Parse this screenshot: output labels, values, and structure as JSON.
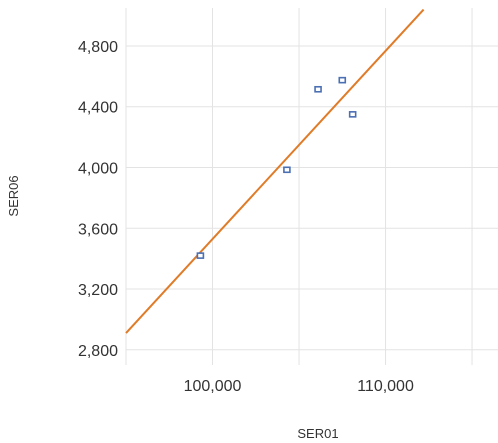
{
  "chart_data": {
    "type": "scatter",
    "xlabel": "SER01",
    "ylabel": "SER06",
    "xlim": [
      95000,
      116500
    ],
    "ylim": [
      2700,
      5050
    ],
    "x_ticks": [
      100000,
      110000
    ],
    "x_tick_labels": [
      "100,000",
      "110,000"
    ],
    "x_grid_values": [
      95000,
      100000,
      105000,
      110000,
      115000
    ],
    "y_ticks": [
      2800,
      3200,
      3600,
      4000,
      4400,
      4800
    ],
    "y_tick_labels": [
      "2,800",
      "3,200",
      "3,600",
      "4,000",
      "4,400",
      "4,800"
    ],
    "grid": true,
    "series": [
      {
        "type": "scatter",
        "marker_color": "#4a6fb3",
        "points": [
          {
            "x": 99300,
            "y": 3420
          },
          {
            "x": 104300,
            "y": 3985
          },
          {
            "x": 106100,
            "y": 4515
          },
          {
            "x": 107500,
            "y": 4575
          },
          {
            "x": 108100,
            "y": 4350
          }
        ]
      },
      {
        "type": "line",
        "color": "#e07b28",
        "points": [
          {
            "x": 95000,
            "y": 2910
          },
          {
            "x": 112200,
            "y": 5040
          }
        ]
      }
    ]
  }
}
